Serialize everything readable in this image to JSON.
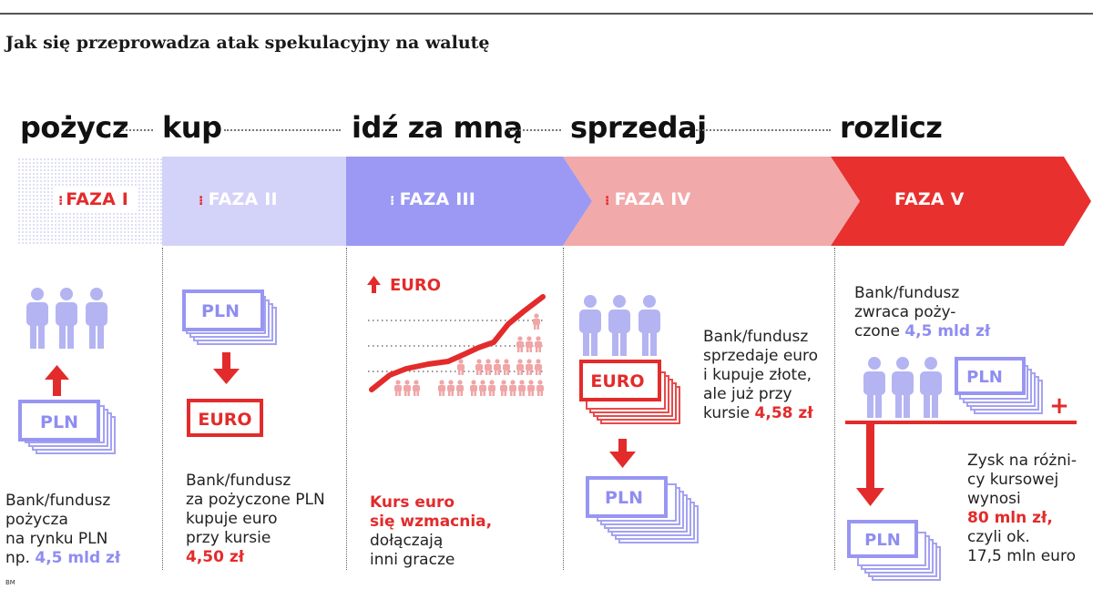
{
  "title": "Jak się przeprowadza atak spekulacyjny na walutę",
  "verbs": [
    "pożycz",
    "kup",
    "idź za mną",
    "sprzedaj",
    "rozlicz"
  ],
  "phases": [
    "FAZA I",
    "FAZA II",
    "FAZA III",
    "FAZA IV",
    "FAZA V"
  ],
  "icons": {
    "pln": "PLN",
    "euro": "EURO",
    "euro_up": "EURO",
    "plus": "+"
  },
  "colors": {
    "red": "#e32b2b",
    "lavender": "#8f8df2",
    "light_lavender": "#cfcff8",
    "mid_lavender": "#9a98f2",
    "pink": "#f0a5a6",
    "figure": "#b4b4f2"
  },
  "col1": {
    "l1": "Bank/fundusz",
    "l2": "pożycza",
    "l3": "na rynku PLN",
    "l4a": "np. ",
    "l4b": "4,5 mld zł"
  },
  "col2": {
    "l1": "Bank/fundusz",
    "l2": "za pożyczone PLN",
    "l3": "kupuje euro",
    "l4": "przy kursie",
    "l5": "4,50 zł"
  },
  "col3": {
    "l1": "Kurs euro",
    "l2": "się wzmacnia,",
    "l3": "dołączają",
    "l4": "inni gracze"
  },
  "col4": {
    "l1": "Bank/fundusz",
    "l2": "sprzedaje euro",
    "l3": "i kupuje złote,",
    "l4": "ale już przy",
    "l5a": "kursie ",
    "l5b": "4,58 zł"
  },
  "col5": {
    "a1": "Bank/fundusz",
    "a2": "zwraca poży-",
    "a3a": "czone ",
    "a3b": "4,5 mld zł",
    "b1": "Zysk na różni-",
    "b2": "cy kursowej",
    "b3": "wynosi",
    "b4": "80 mln zł,",
    "b5": "czyli ok.",
    "b6": "17,5 mln euro"
  },
  "footnote": "BM"
}
